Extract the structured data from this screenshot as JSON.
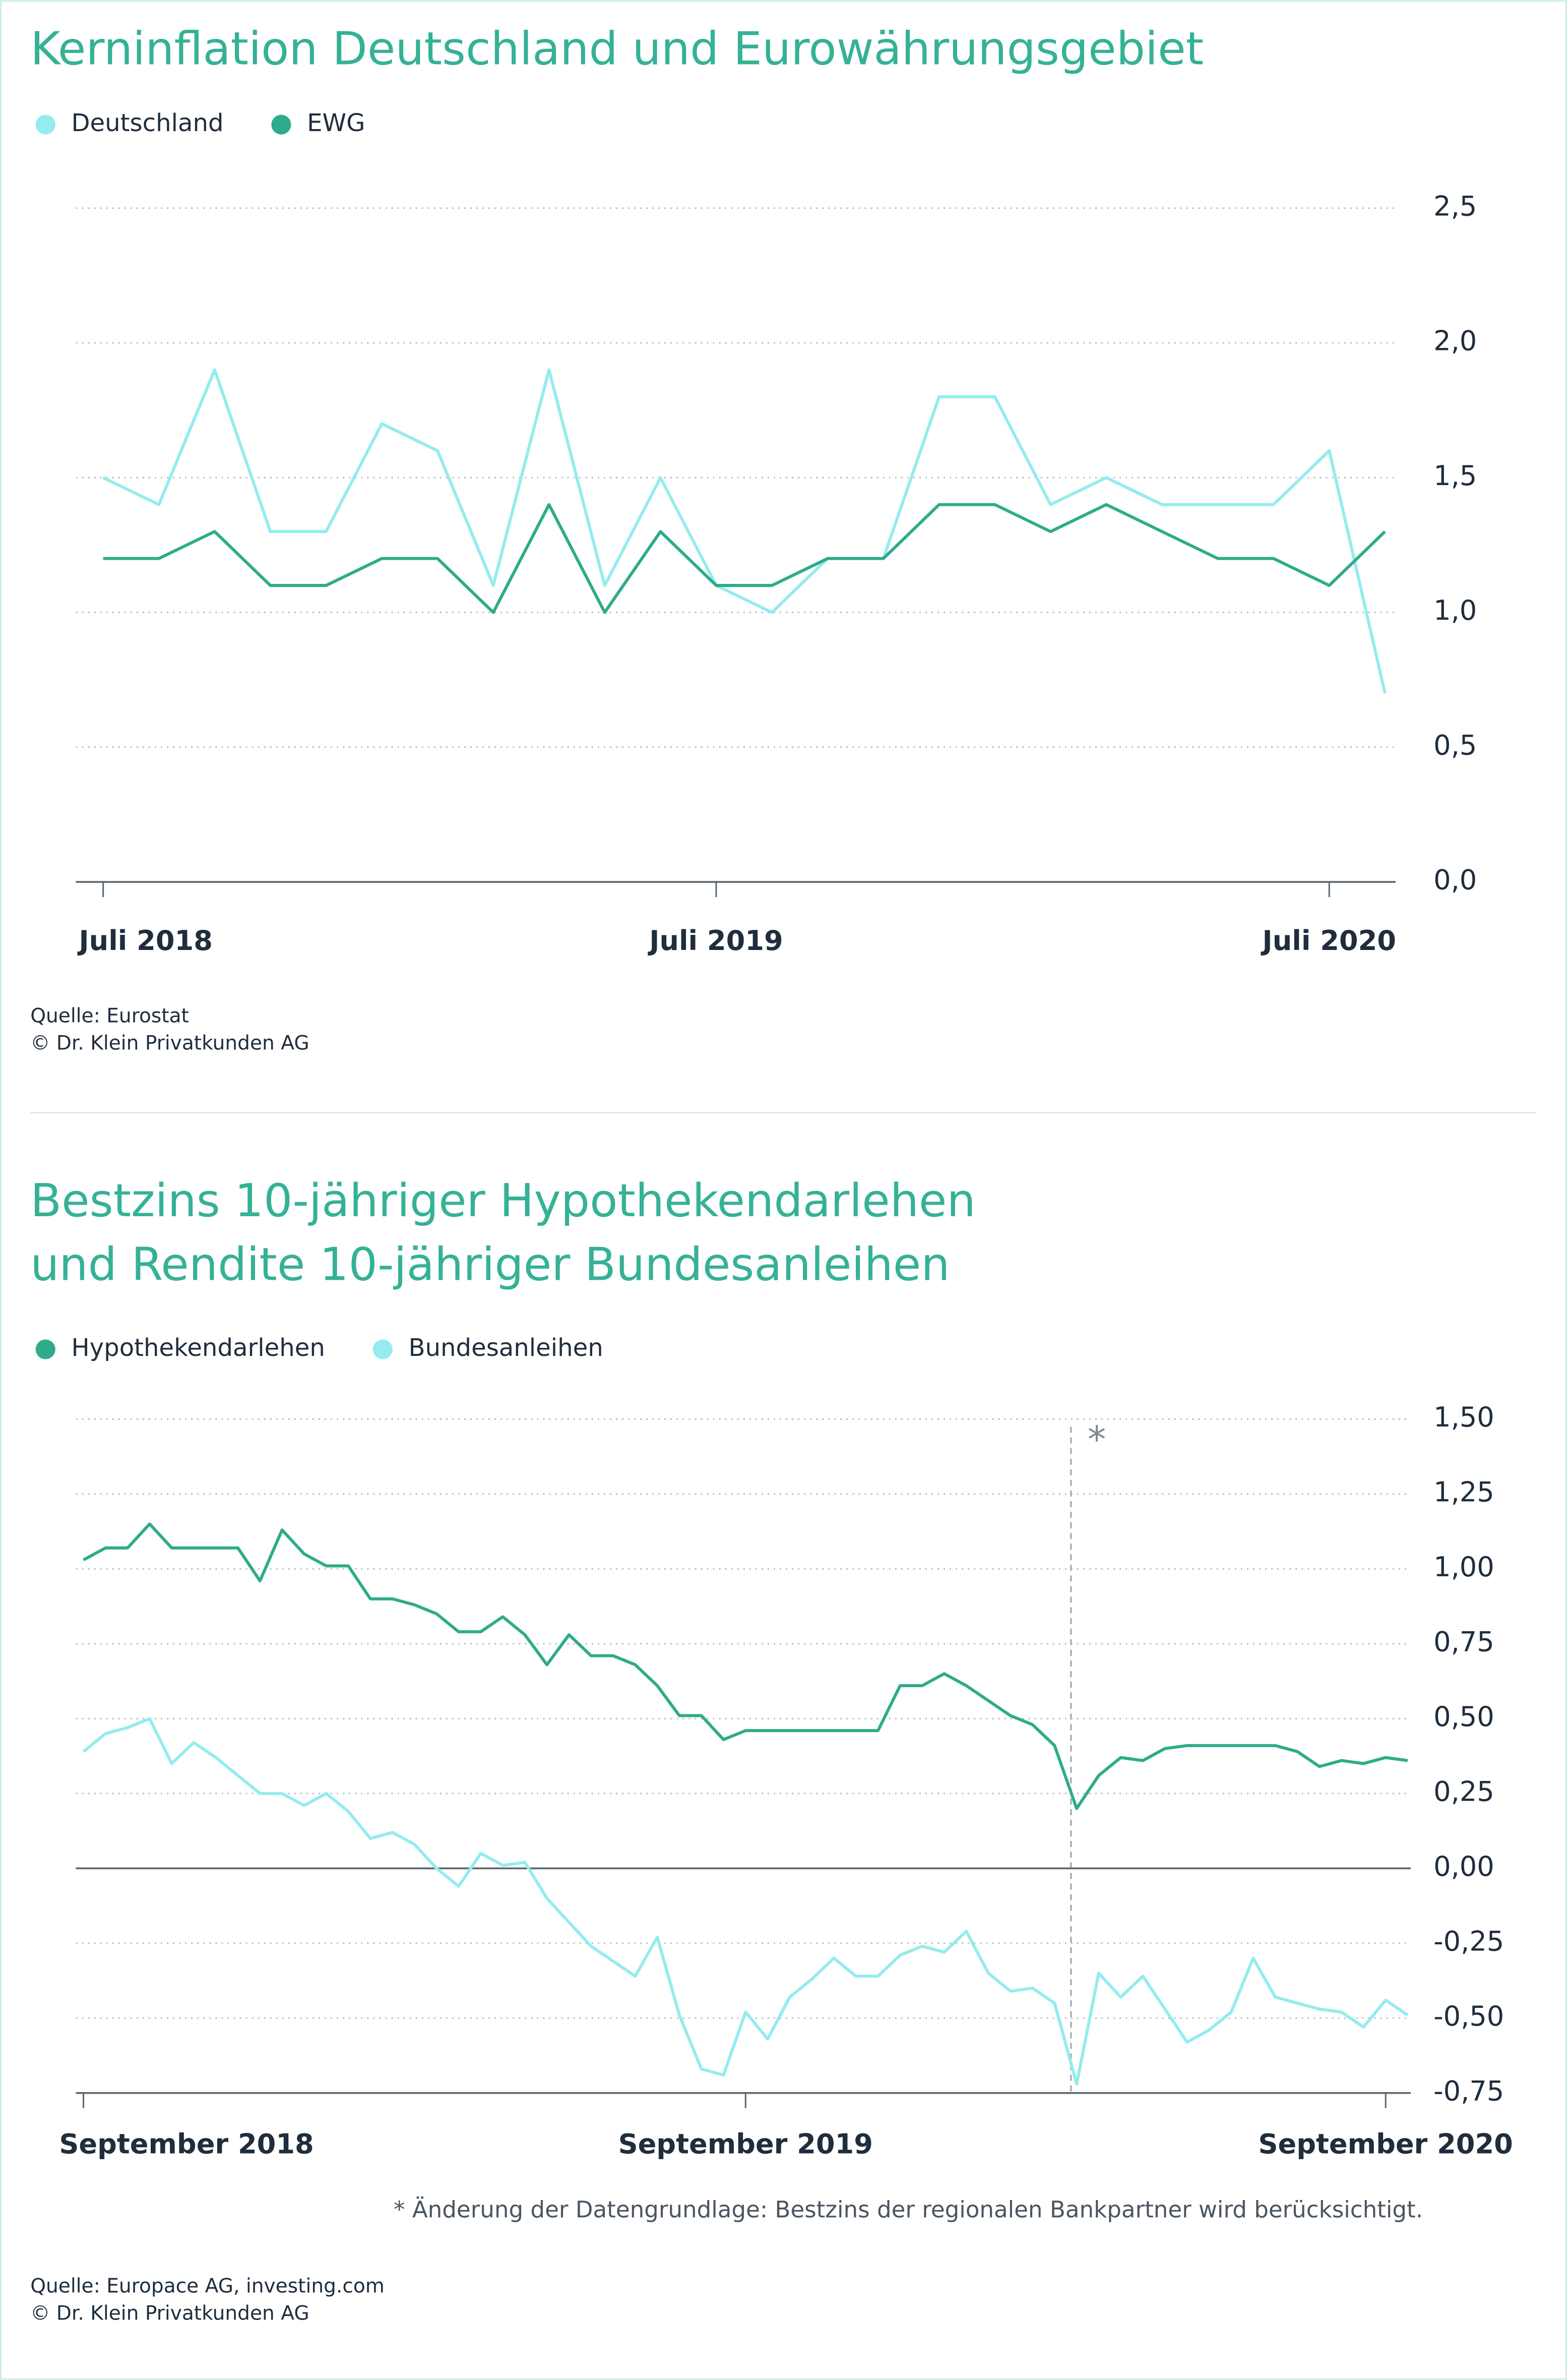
{
  "chart_data": [
    {
      "type": "line",
      "title": [
        "Kerninflation Deutschland und Eurowährungsgebiet"
      ],
      "categories": [
        "Juli 2018",
        null,
        null,
        null,
        null,
        null,
        null,
        null,
        null,
        null,
        null,
        "Juli 2019",
        null,
        null,
        null,
        null,
        null,
        null,
        null,
        null,
        null,
        null,
        "Juli 2020",
        null
      ],
      "series": [
        {
          "name": "Deutschland",
          "color": "#94ecee",
          "values": [
            1.5,
            1.4,
            1.9,
            1.3,
            1.3,
            1.7,
            1.6,
            1.1,
            1.9,
            1.1,
            1.5,
            1.1,
            1.0,
            1.2,
            1.2,
            1.8,
            1.8,
            1.4,
            1.5,
            1.4,
            1.4,
            1.4,
            1.6,
            0.7
          ]
        },
        {
          "name": "EWG",
          "color": "#2eab8a",
          "values": [
            1.2,
            1.2,
            1.3,
            1.1,
            1.1,
            1.2,
            1.2,
            1.0,
            1.4,
            1.0,
            1.3,
            1.1,
            1.1,
            1.2,
            1.2,
            1.4,
            1.4,
            1.3,
            1.4,
            1.3,
            1.2,
            1.2,
            1.1,
            1.3
          ]
        }
      ],
      "ylim": [
        0,
        2.5
      ],
      "yticks": [
        {
          "value": 0,
          "label": "0,0"
        },
        {
          "value": 0.5,
          "label": "0,5"
        },
        {
          "value": 1,
          "label": "1,0"
        },
        {
          "value": 1.5,
          "label": "1,5"
        },
        {
          "value": 2,
          "label": "2,0"
        },
        {
          "value": 2.5,
          "label": "2,5"
        }
      ],
      "grid": true,
      "sources": [
        "Quelle: Eurostat",
        "© Dr. Klein Privatkunden AG"
      ]
    },
    {
      "type": "line",
      "title": [
        "Bestzins 10-jähriger Hypothekendarlehen",
        "und Rendite 10-jähriger Bundesanleihen"
      ],
      "categories": [
        "September 2018",
        null,
        null,
        null,
        null,
        null,
        null,
        null,
        null,
        null,
        null,
        null,
        null,
        null,
        null,
        null,
        null,
        null,
        null,
        null,
        null,
        null,
        null,
        null,
        null,
        null,
        null,
        null,
        null,
        null,
        "September 2019",
        null,
        null,
        null,
        null,
        null,
        null,
        null,
        null,
        null,
        null,
        null,
        null,
        null,
        null,
        null,
        null,
        null,
        null,
        null,
        null,
        null,
        null,
        null,
        null,
        null,
        null,
        null,
        null,
        "September 2020",
        null
      ],
      "series": [
        {
          "name": "Hypothekendarlehen",
          "color": "#2eab8a",
          "values": [
            1.03,
            1.07,
            1.07,
            1.15,
            1.07,
            1.07,
            1.07,
            1.07,
            0.96,
            1.13,
            1.05,
            1.01,
            1.01,
            0.9,
            0.9,
            0.88,
            0.85,
            0.79,
            0.79,
            0.84,
            0.78,
            0.68,
            0.78,
            0.71,
            0.71,
            0.68,
            0.61,
            0.51,
            0.51,
            0.43,
            0.46,
            0.46,
            0.46,
            0.46,
            0.46,
            0.46,
            0.46,
            0.61,
            0.61,
            0.65,
            0.61,
            0.56,
            0.51,
            0.48,
            0.41,
            0.2,
            0.31,
            0.37,
            0.36,
            0.4,
            0.41,
            0.41,
            0.41,
            0.41,
            0.41,
            0.39,
            0.34,
            0.36,
            0.35,
            0.37,
            0.36
          ]
        },
        {
          "name": "Bundesanleihen",
          "color": "#94ecee",
          "values": [
            0.39,
            0.45,
            0.47,
            0.5,
            0.35,
            0.42,
            0.37,
            0.31,
            0.25,
            0.25,
            0.21,
            0.25,
            0.19,
            0.1,
            0.12,
            0.08,
            0.0,
            -0.06,
            0.05,
            0.01,
            0.02,
            -0.1,
            -0.18,
            -0.26,
            -0.31,
            -0.36,
            -0.23,
            -0.49,
            -0.67,
            -0.69,
            -0.48,
            -0.57,
            -0.43,
            -0.37,
            -0.3,
            -0.36,
            -0.36,
            -0.29,
            -0.26,
            -0.28,
            -0.21,
            -0.35,
            -0.41,
            -0.4,
            -0.45,
            -0.72,
            -0.35,
            -0.43,
            -0.36,
            -0.47,
            -0.58,
            -0.54,
            -0.48,
            -0.3,
            -0.43,
            -0.45,
            -0.47,
            -0.48,
            -0.53,
            -0.44,
            -0.49
          ]
        }
      ],
      "ylim": [
        -0.75,
        1.5
      ],
      "yticks": [
        {
          "value": -0.75,
          "label": "-0,75"
        },
        {
          "value": -0.5,
          "label": "-0,50"
        },
        {
          "value": -0.25,
          "label": "-0,25"
        },
        {
          "value": 0,
          "label": "0,00"
        },
        {
          "value": 0.25,
          "label": "0,25"
        },
        {
          "value": 0.5,
          "label": "0,50"
        },
        {
          "value": 0.75,
          "label": "0,75"
        },
        {
          "value": 1,
          "label": "1,00"
        },
        {
          "value": 1.25,
          "label": "1,25"
        },
        {
          "value": 1.5,
          "label": "1,50"
        }
      ],
      "grid": true,
      "annotation": "*",
      "footnote": "*  Änderung der Datengrundlage: Bestzins der regionalen Bankpartner wird berücksichtigt.",
      "sources": [
        "Quelle: Europace AG, investing.com",
        "© Dr. Klein Privatkunden AG"
      ]
    }
  ]
}
